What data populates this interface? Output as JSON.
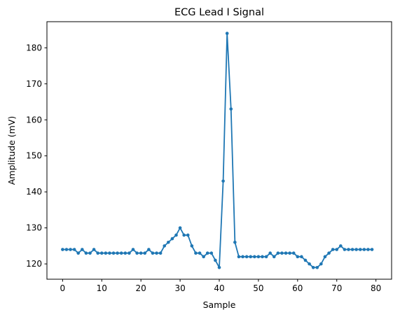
{
  "chart_data": {
    "type": "line",
    "title": "ECG Lead I Signal",
    "xlabel": "Sample",
    "ylabel": "Amplitude (mV)",
    "xlim": [
      -4,
      84
    ],
    "ylim": [
      115.75,
      187.25
    ],
    "xticks": [
      0,
      10,
      20,
      30,
      40,
      50,
      60,
      70,
      80
    ],
    "yticks": [
      120,
      130,
      140,
      150,
      160,
      170,
      180
    ],
    "grid": false,
    "legend": "none",
    "series": [
      {
        "color": "#1f77b4",
        "marker": "circle",
        "x": [
          0,
          1,
          2,
          3,
          4,
          5,
          6,
          7,
          8,
          9,
          10,
          11,
          12,
          13,
          14,
          15,
          16,
          17,
          18,
          19,
          20,
          21,
          22,
          23,
          24,
          25,
          26,
          27,
          28,
          29,
          30,
          31,
          32,
          33,
          34,
          35,
          36,
          37,
          38,
          39,
          40,
          41,
          42,
          43,
          44,
          45,
          46,
          47,
          48,
          49,
          50,
          51,
          52,
          53,
          54,
          55,
          56,
          57,
          58,
          59,
          60,
          61,
          62,
          63,
          64,
          65,
          66,
          67,
          68,
          69,
          70,
          71,
          72,
          73,
          74,
          75,
          76,
          77,
          78,
          79
        ],
        "y": [
          124,
          124,
          124,
          124,
          123,
          124,
          123,
          123,
          124,
          123,
          123,
          123,
          123,
          123,
          123,
          123,
          123,
          123,
          124,
          123,
          123,
          123,
          124,
          123,
          123,
          123,
          125,
          126,
          127,
          128,
          130,
          128,
          128,
          125,
          123,
          123,
          122,
          123,
          123,
          121,
          119,
          143,
          184,
          163,
          126,
          122,
          122,
          122,
          122,
          122,
          122,
          122,
          122,
          123,
          122,
          123,
          123,
          123,
          123,
          123,
          122,
          122,
          121,
          120,
          119,
          119,
          120,
          122,
          123,
          124,
          124,
          125,
          124,
          124,
          124,
          124,
          124,
          124,
          124,
          124
        ]
      }
    ]
  }
}
